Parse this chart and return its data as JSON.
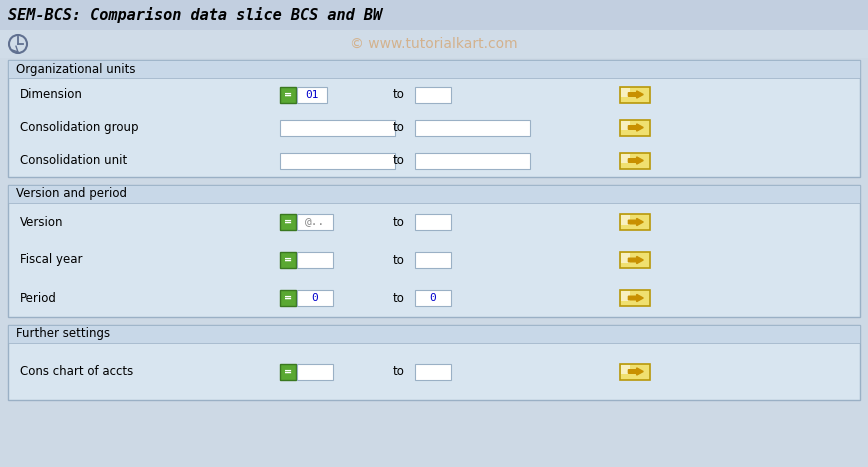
{
  "title": "SEM-BCS: Comparison data slice BCS and BW",
  "watermark": "© www.tutorialkart.com",
  "bg_color": "#cdd9e5",
  "title_bg": "#c2cfe0",
  "toolbar_bg": "#d0dce8",
  "section_header_bg": "#c8d8e8",
  "section_bg": "#d8e5f0",
  "field_bg": "#ffffff",
  "green_btn_bg": "#5aa832",
  "green_btn_border": "#3a7820",
  "arrow_btn_bg": "#f0e070",
  "arrow_btn_border": "#b8980a",
  "border_color": "#9ab0c5",
  "sections": [
    {
      "title": "Organizational units",
      "rows": [
        {
          "label": "Dimension",
          "has_green": true,
          "val1": "01",
          "val1_color": "#0000cc",
          "has_to": true,
          "val2": "",
          "val2_narrow": true,
          "has_arrow": true
        },
        {
          "label": "Consolidation group",
          "has_green": false,
          "val1": "",
          "val1_color": "#000000",
          "has_to": true,
          "val2": "",
          "val2_narrow": false,
          "has_arrow": true
        },
        {
          "label": "Consolidation unit",
          "has_green": false,
          "val1": "",
          "val1_color": "#000000",
          "has_to": true,
          "val2": "",
          "val2_narrow": false,
          "has_arrow": true
        }
      ]
    },
    {
      "title": "Version and period",
      "rows": [
        {
          "label": "Version",
          "has_green": true,
          "val1": "@..",
          "val1_color": "#888888",
          "has_to": true,
          "val2": "",
          "val2_narrow": true,
          "has_arrow": true,
          "val1_narrow": true
        },
        {
          "label": "Fiscal year",
          "has_green": true,
          "val1": "",
          "val1_color": "#000000",
          "has_to": true,
          "val2": "",
          "val2_narrow": true,
          "has_arrow": true,
          "val1_narrow": true
        },
        {
          "label": "Period",
          "has_green": true,
          "val1": "0",
          "val1_color": "#0000cc",
          "has_to": true,
          "val2": "0",
          "val2_narrow": true,
          "has_arrow": true,
          "val1_narrow": true
        }
      ]
    },
    {
      "title": "Further settings",
      "rows": [
        {
          "label": "Cons chart of accts",
          "has_green": true,
          "val1": "",
          "val1_color": "#000000",
          "has_to": true,
          "val2": "",
          "val2_narrow": true,
          "has_arrow": true,
          "val1_narrow": true
        }
      ]
    }
  ]
}
